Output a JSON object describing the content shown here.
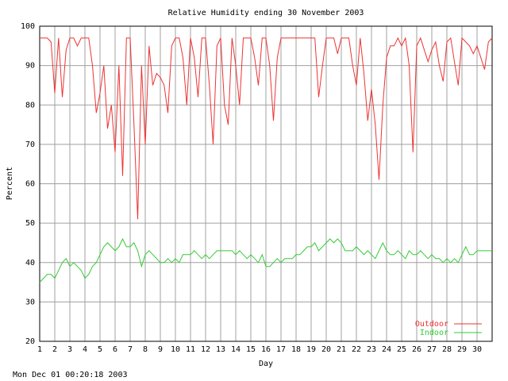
{
  "chart_data": {
    "type": "line",
    "title": "Relative Humidity ending 30 November 2003",
    "x_label": "Day",
    "y_label": "Percent",
    "footer": "Mon Dec 01 00:20:18 2003",
    "x": [
      1,
      1.25,
      1.5,
      1.75,
      2,
      2.25,
      2.5,
      2.75,
      3,
      3.25,
      3.5,
      3.75,
      4,
      4.25,
      4.5,
      4.75,
      5,
      5.25,
      5.5,
      5.75,
      6,
      6.25,
      6.5,
      6.75,
      7,
      7.25,
      7.5,
      7.75,
      8,
      8.25,
      8.5,
      8.75,
      9,
      9.25,
      9.5,
      9.75,
      10,
      10.25,
      10.5,
      10.75,
      11,
      11.25,
      11.5,
      11.75,
      12,
      12.25,
      12.5,
      12.75,
      13,
      13.25,
      13.5,
      13.75,
      14,
      14.25,
      14.5,
      14.75,
      15,
      15.25,
      15.5,
      15.75,
      16,
      16.25,
      16.5,
      16.75,
      17,
      17.25,
      17.5,
      17.75,
      18,
      18.25,
      18.5,
      18.75,
      19,
      19.25,
      19.5,
      19.75,
      20,
      20.25,
      20.5,
      20.75,
      21,
      21.25,
      21.5,
      21.75,
      22,
      22.25,
      22.5,
      22.75,
      23,
      23.25,
      23.5,
      23.75,
      24,
      24.25,
      24.5,
      24.75,
      25,
      25.25,
      25.5,
      25.75,
      26,
      26.25,
      26.5,
      26.75,
      27,
      27.25,
      27.5,
      27.75,
      28,
      28.25,
      28.5,
      28.75,
      29,
      29.25,
      29.5,
      29.75,
      30,
      30.25,
      30.5,
      30.75,
      31
    ],
    "series": [
      {
        "name": "Outdoor",
        "color": "#ee3333",
        "values": [
          97,
          97,
          97,
          96,
          83,
          97,
          82,
          94,
          97,
          97,
          95,
          97,
          97,
          97,
          90,
          78,
          83,
          90,
          74,
          80,
          68,
          90,
          62,
          97,
          97,
          75,
          51,
          90,
          70,
          95,
          85,
          88,
          87,
          85,
          78,
          95,
          97,
          97,
          92,
          80,
          97,
          92,
          82,
          97,
          97,
          85,
          70,
          95,
          97,
          80,
          75,
          97,
          90,
          80,
          97,
          97,
          97,
          92,
          85,
          97,
          97,
          90,
          76,
          92,
          97,
          97,
          97,
          97,
          97,
          97,
          97,
          97,
          97,
          97,
          82,
          90,
          97,
          97,
          97,
          93,
          97,
          97,
          97,
          90,
          85,
          97,
          88,
          76,
          84,
          75,
          61,
          80,
          92,
          95,
          95,
          97,
          95,
          97,
          90,
          68,
          95,
          97,
          94,
          91,
          94,
          96,
          90,
          86,
          96,
          97,
          91,
          85,
          97,
          96,
          95,
          93,
          95,
          92,
          89,
          96,
          97
        ]
      },
      {
        "name": "Indoor",
        "color": "#33cc33",
        "values": [
          35,
          36,
          37,
          37,
          36,
          38,
          40,
          41,
          39,
          40,
          39,
          38,
          36,
          37,
          39,
          40,
          42,
          44,
          45,
          44,
          43,
          44,
          46,
          44,
          44,
          45,
          43,
          39,
          42,
          43,
          42,
          41,
          40,
          40,
          41,
          40,
          41,
          40,
          42,
          42,
          42,
          43,
          42,
          41,
          42,
          41,
          42,
          43,
          43,
          43,
          43,
          43,
          42,
          43,
          42,
          41,
          42,
          41,
          40,
          42,
          39,
          39,
          40,
          41,
          40,
          41,
          41,
          41,
          42,
          42,
          43,
          44,
          44,
          45,
          43,
          44,
          45,
          46,
          45,
          46,
          45,
          43,
          43,
          43,
          44,
          43,
          42,
          43,
          42,
          41,
          43,
          45,
          43,
          42,
          42,
          43,
          42,
          41,
          43,
          42,
          42,
          43,
          42,
          41,
          42,
          41,
          41,
          40,
          41,
          40,
          41,
          40,
          42,
          44,
          42,
          42,
          43,
          43,
          43,
          43,
          43
        ]
      }
    ],
    "xlim": [
      1,
      31
    ],
    "xticks": [
      1,
      2,
      3,
      4,
      5,
      6,
      7,
      8,
      9,
      10,
      11,
      12,
      13,
      14,
      15,
      16,
      17,
      18,
      19,
      20,
      21,
      22,
      23,
      24,
      25,
      26,
      27,
      28,
      29,
      30
    ],
    "ylim": [
      20,
      100
    ],
    "yticks": [
      20,
      30,
      40,
      50,
      60,
      70,
      80,
      90,
      100
    ],
    "grid": true,
    "legend": "lower right"
  }
}
